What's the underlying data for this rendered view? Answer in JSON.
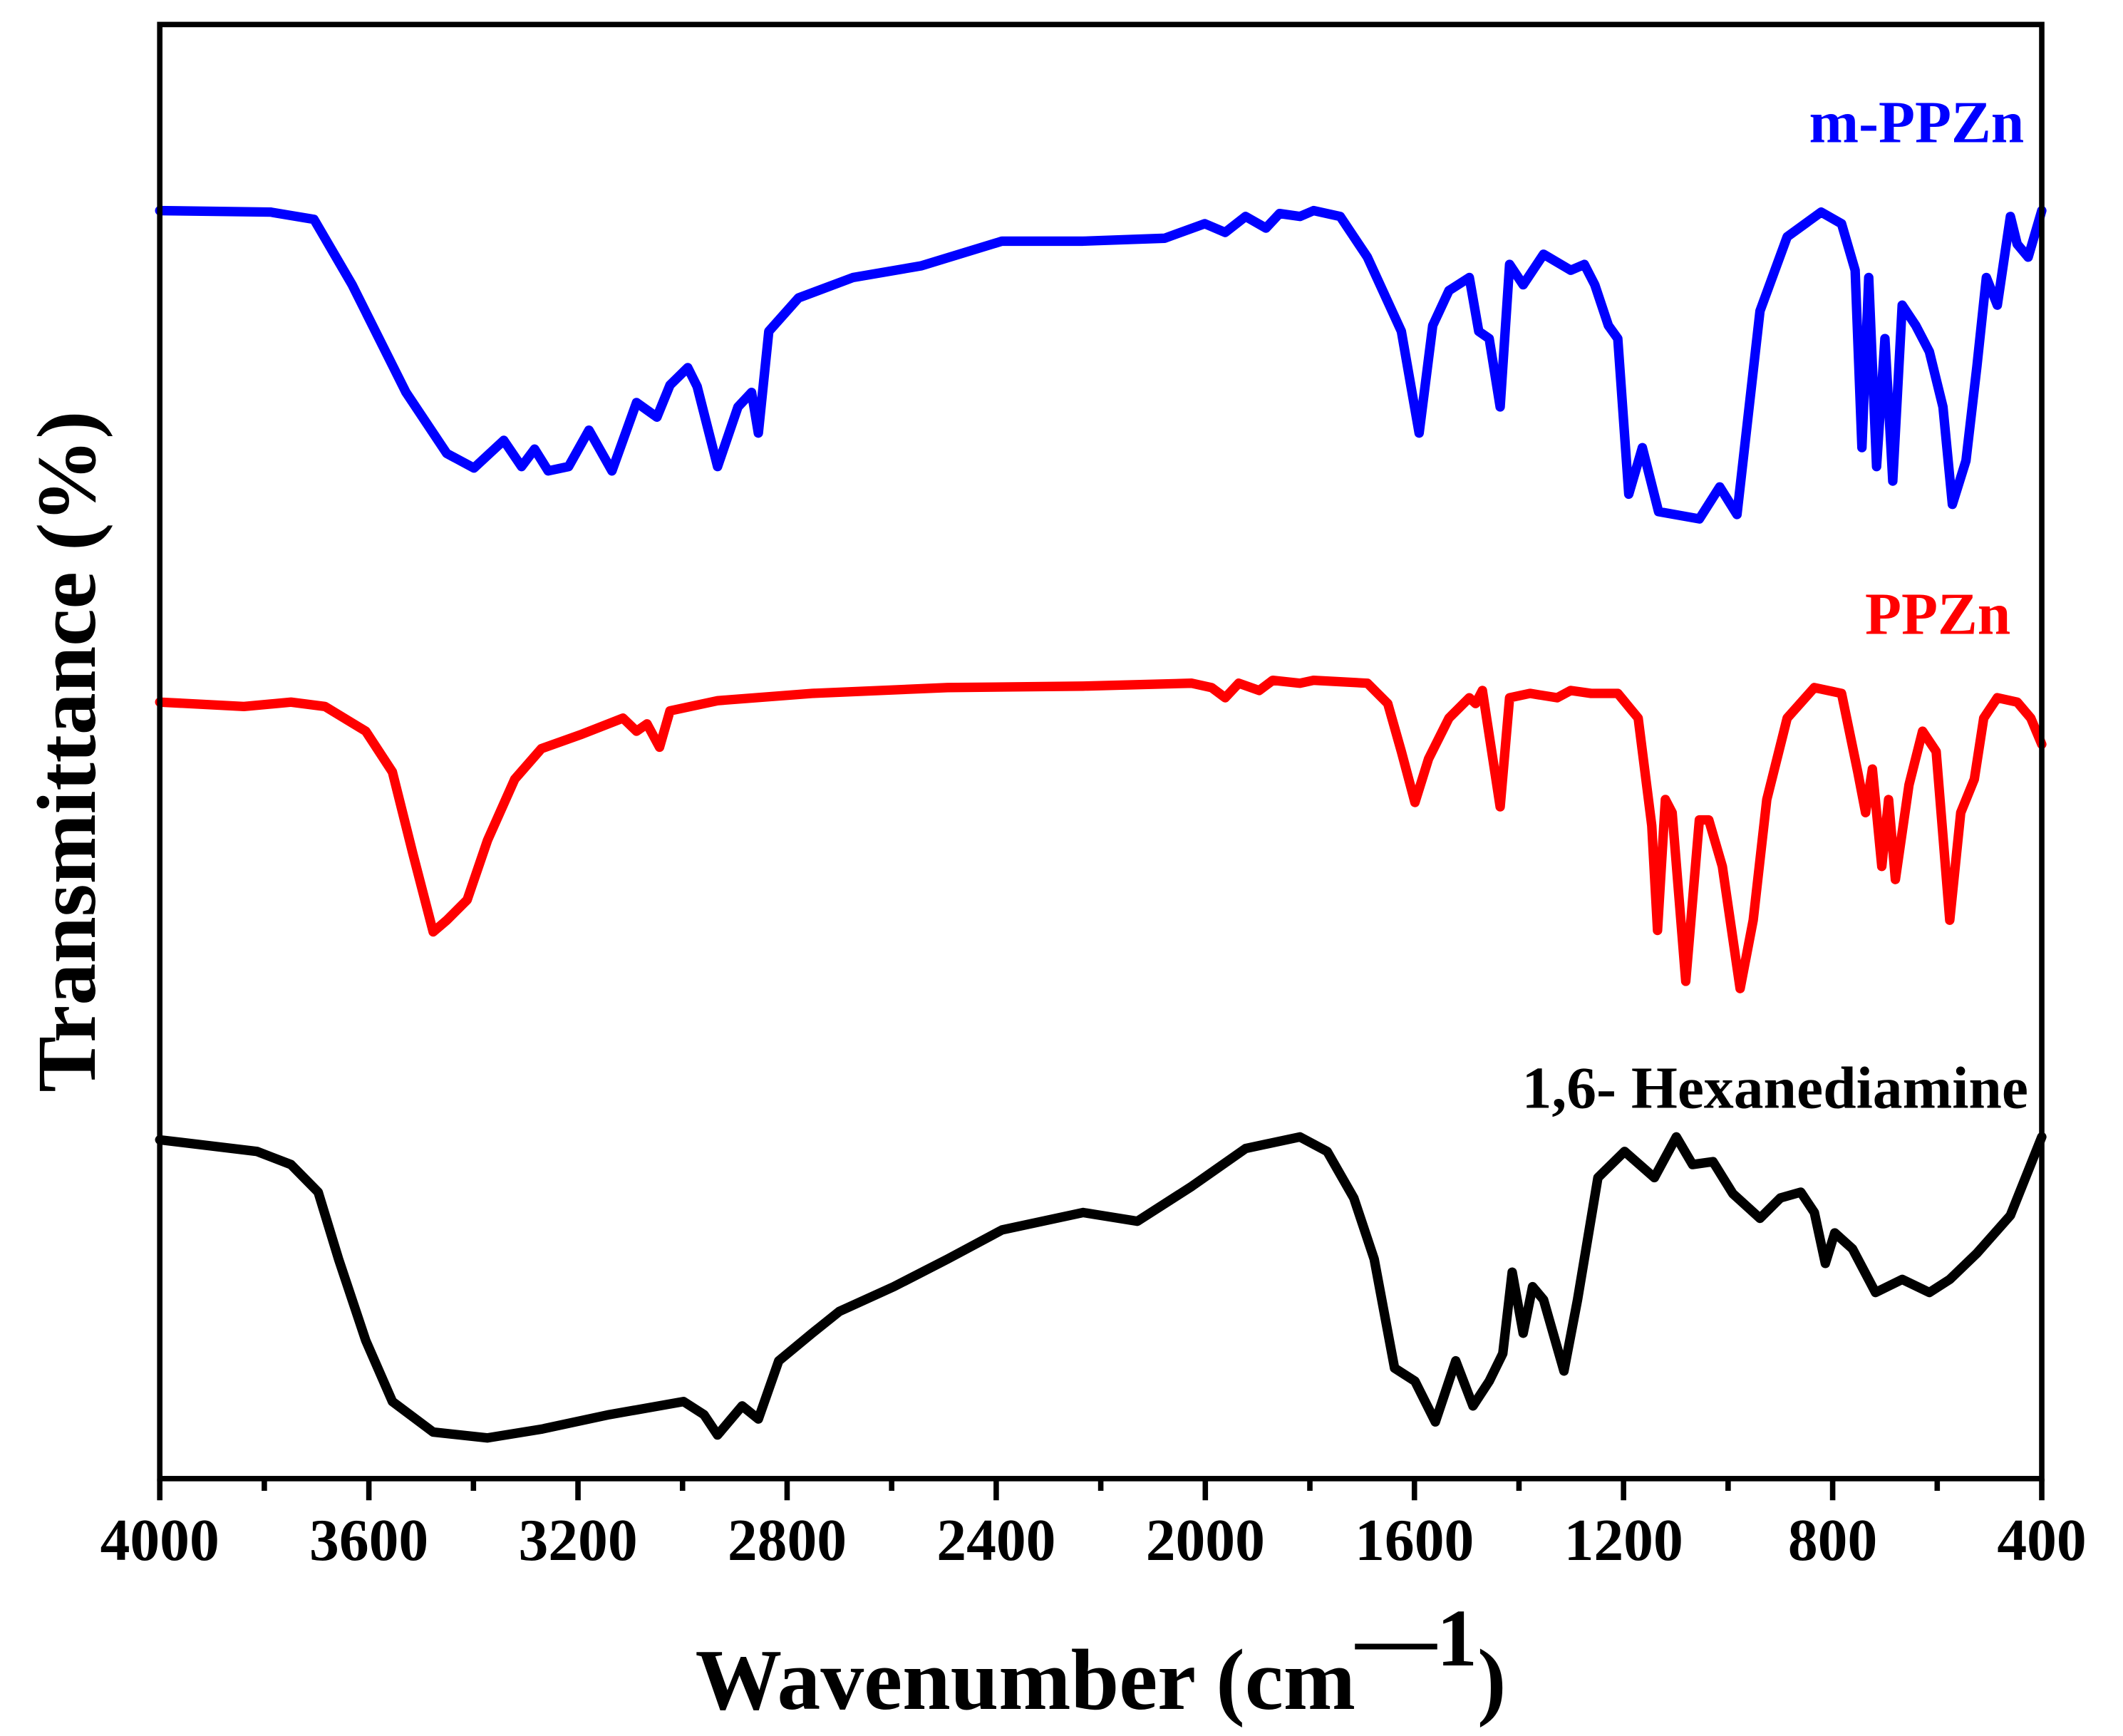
{
  "chart_data": {
    "type": "line",
    "xlabel": [
      "Wavenumber (cm",
      "—1",
      ")"
    ],
    "ylabel": "Transmittance (%)",
    "xlim": [
      4000,
      400
    ],
    "xticks": [
      4000,
      3600,
      3200,
      2800,
      2400,
      2000,
      1600,
      1200,
      800,
      400
    ],
    "xminor_ticks": [
      3800,
      3400,
      3000,
      2600,
      2200,
      1800,
      1400,
      1000,
      600
    ],
    "ylim": [
      0,
      100
    ],
    "series": [
      {
        "name": "m-PPZn",
        "color": "#0000ff",
        "x": [
          4000,
          3788,
          3705,
          3632,
          3529,
          3451,
          3399,
          3342,
          3308,
          3283,
          3257,
          3218,
          3179,
          3135,
          3088,
          3049,
          3024,
          2990,
          2972,
          2933,
          2894,
          2868,
          2855,
          2835,
          2778,
          2674,
          2544,
          2389,
          2234,
          2078,
          2001,
          1962,
          1923,
          1884,
          1858,
          1819,
          1793,
          1742,
          1690,
          1625,
          1591,
          1565,
          1534,
          1495,
          1477,
          1457,
          1436,
          1418,
          1392,
          1353,
          1301,
          1275,
          1255,
          1229,
          1211,
          1190,
          1164,
          1133,
          1055,
          1016,
          983,
          939,
          887,
          822,
          783,
          757,
          744,
          731,
          716,
          700,
          685,
          667,
          641,
          615,
          589,
          571,
          545,
          524,
          506,
          485,
          460,
          447,
          426,
          400
        ],
        "values": [
          87.2,
          87.1,
          86.6,
          82.1,
          74.7,
          70.5,
          69.5,
          71.4,
          69.6,
          70.8,
          69.3,
          69.6,
          72.1,
          69.3,
          74.0,
          73.0,
          75.2,
          76.4,
          75.1,
          69.6,
          73.7,
          74.7,
          71.9,
          78.9,
          81.2,
          82.6,
          83.4,
          85.1,
          85.1,
          85.3,
          86.3,
          85.7,
          86.8,
          86.0,
          87.0,
          86.8,
          87.2,
          86.8,
          84.0,
          78.9,
          71.9,
          79.3,
          81.7,
          82.6,
          78.9,
          78.4,
          73.7,
          83.5,
          82.1,
          84.2,
          83.1,
          83.5,
          82.1,
          79.3,
          78.4,
          67.7,
          70.9,
          66.5,
          66.0,
          68.2,
          66.3,
          80.3,
          85.4,
          87.1,
          86.3,
          83.1,
          70.9,
          82.6,
          69.6,
          78.4,
          68.6,
          80.7,
          79.3,
          77.5,
          73.7,
          67.0,
          70.0,
          76.5,
          82.6,
          80.7,
          86.8,
          84.9,
          84.0,
          87.2
        ]
      },
      {
        "name": "PPZn",
        "color": "#ff0000",
        "x": [
          4000,
          3839,
          3749,
          3684,
          3606,
          3555,
          3516,
          3477,
          3451,
          3412,
          3373,
          3321,
          3270,
          3192,
          3114,
          3088,
          3068,
          3044,
          3024,
          2933,
          2752,
          2493,
          2234,
          2026,
          1988,
          1962,
          1936,
          1897,
          1871,
          1819,
          1793,
          1742,
          1690,
          1651,
          1625,
          1599,
          1573,
          1534,
          1495,
          1483,
          1470,
          1436,
          1418,
          1379,
          1327,
          1301,
          1262,
          1211,
          1172,
          1146,
          1135,
          1120,
          1107,
          1081,
          1055,
          1037,
          1011,
          977,
          952,
          926,
          887,
          835,
          783,
          752,
          737,
          724,
          706,
          693,
          680,
          654,
          628,
          602,
          576,
          555,
          529,
          511,
          485,
          447,
          421,
          400
        ],
        "values": [
          53.4,
          53.1,
          53.4,
          53.1,
          51.4,
          48.6,
          43.0,
          37.6,
          38.4,
          39.8,
          43.9,
          48.1,
          50.2,
          51.2,
          52.3,
          51.4,
          51.9,
          50.3,
          52.8,
          53.5,
          54.0,
          54.4,
          54.5,
          54.7,
          54.4,
          53.7,
          54.7,
          54.2,
          54.9,
          54.7,
          54.9,
          54.8,
          54.7,
          53.3,
          50.0,
          46.5,
          49.5,
          52.3,
          53.7,
          53.3,
          54.2,
          46.2,
          53.7,
          54.0,
          53.7,
          54.2,
          54.0,
          54.0,
          52.3,
          44.9,
          37.7,
          46.7,
          45.8,
          34.2,
          45.3,
          45.3,
          42.1,
          33.7,
          38.4,
          46.7,
          52.3,
          54.4,
          54.0,
          48.6,
          45.8,
          48.8,
          42.1,
          46.7,
          41.2,
          47.7,
          51.4,
          50.0,
          38.4,
          45.8,
          48.1,
          52.3,
          53.7,
          53.4,
          52.3,
          50.5
        ]
      },
      {
        "name": "1,6- Hexanediamine",
        "color": "#000000",
        "x": [
          4000,
          3814,
          3749,
          3697,
          3658,
          3606,
          3555,
          3477,
          3373,
          3270,
          3140,
          2998,
          2959,
          2933,
          2886,
          2855,
          2816,
          2752,
          2700,
          2596,
          2493,
          2389,
          2234,
          2130,
          2026,
          1923,
          1819,
          1767,
          1716,
          1677,
          1638,
          1599,
          1560,
          1521,
          1488,
          1457,
          1431,
          1413,
          1392,
          1374,
          1353,
          1314,
          1288,
          1249,
          1198,
          1141,
          1099,
          1068,
          1029,
          991,
          939,
          900,
          861,
          835,
          814,
          796,
          762,
          718,
          667,
          615,
          576,
          524,
          460,
          400
        ],
        "values": [
          23.3,
          22.5,
          21.6,
          19.7,
          15.1,
          9.5,
          5.3,
          3.2,
          2.8,
          3.4,
          4.4,
          5.3,
          4.4,
          3.0,
          5.0,
          4.1,
          8.1,
          10.0,
          11.5,
          13.2,
          15.1,
          17.1,
          18.3,
          17.7,
          20.1,
          22.7,
          23.5,
          22.5,
          19.3,
          15.1,
          7.6,
          6.7,
          3.9,
          8.1,
          5.0,
          6.7,
          8.6,
          14.2,
          10.0,
          13.2,
          12.3,
          7.4,
          12.3,
          20.7,
          22.5,
          20.7,
          23.5,
          21.6,
          21.8,
          19.6,
          17.9,
          19.3,
          19.7,
          18.3,
          14.8,
          16.9,
          15.8,
          12.8,
          13.7,
          12.8,
          13.7,
          15.5,
          18.1,
          23.5
        ]
      }
    ]
  }
}
